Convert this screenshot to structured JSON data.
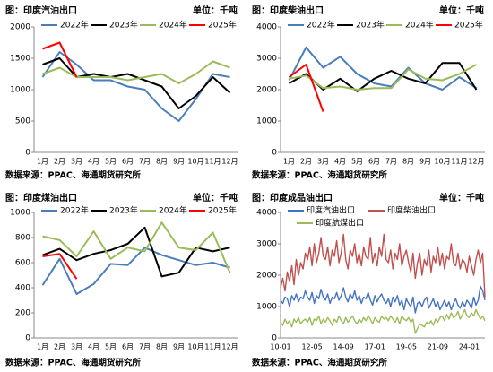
{
  "chart_data": [
    {
      "type": "line",
      "title": "图：印度汽油出口",
      "unit": "单位：千吨",
      "source": "数据来源：PPAC、海通期货研究所",
      "categories": [
        "1月",
        "2月",
        "3月",
        "4月",
        "5月",
        "6月",
        "7月",
        "8月",
        "9月",
        "10月",
        "11月",
        "12月"
      ],
      "ylim": [
        0,
        2000
      ],
      "yticks": [
        0,
        500,
        1000,
        1500,
        2000
      ],
      "legend_columns": 4,
      "series": [
        {
          "name": "2022年",
          "color": "#4a7ebb",
          "values": [
            1200,
            1600,
            1400,
            1150,
            1150,
            1050,
            1000,
            700,
            500,
            850,
            1250,
            1200
          ]
        },
        {
          "name": "2023年",
          "color": "#000000",
          "values": [
            1400,
            1500,
            1200,
            1250,
            1200,
            1250,
            1150,
            1050,
            700,
            900,
            1200,
            950
          ]
        },
        {
          "name": "2024年",
          "color": "#9bbb59",
          "values": [
            1250,
            1350,
            1200,
            1200,
            1200,
            1150,
            1200,
            1250,
            1100,
            1250,
            1450,
            1350
          ]
        },
        {
          "name": "2025年",
          "color": "#ff0000",
          "values": [
            1650,
            1750,
            1200,
            null,
            null,
            null,
            null,
            null,
            null,
            null,
            null,
            null
          ]
        }
      ]
    },
    {
      "type": "line",
      "title": "图：印度柴油出口",
      "unit": "单位：千吨",
      "source": "数据来源：PPAC、海通期货研究所",
      "categories": [
        "1月",
        "2月",
        "3月",
        "4月",
        "5月",
        "6月",
        "7月",
        "8月",
        "9月",
        "10月",
        "11月",
        "12月"
      ],
      "ylim": [
        0,
        4000
      ],
      "yticks": [
        0,
        1000,
        2000,
        3000,
        4000
      ],
      "legend_columns": 4,
      "series": [
        {
          "name": "2022年",
          "color": "#4a7ebb",
          "values": [
            2300,
            3350,
            2700,
            3050,
            2500,
            2200,
            2100,
            2700,
            2200,
            2000,
            2400,
            2050
          ]
        },
        {
          "name": "2023年",
          "color": "#000000",
          "values": [
            2200,
            2500,
            2000,
            2350,
            1950,
            2350,
            2600,
            2350,
            2200,
            2850,
            2850,
            2000
          ]
        },
        {
          "name": "2024年",
          "color": "#9bbb59",
          "values": [
            2350,
            2450,
            2050,
            2100,
            2000,
            2050,
            2050,
            2650,
            2350,
            2300,
            2500,
            2800
          ]
        },
        {
          "name": "2025年",
          "color": "#ff0000",
          "values": [
            2400,
            2800,
            1300,
            null,
            null,
            null,
            null,
            null,
            null,
            null,
            null,
            null
          ]
        }
      ]
    },
    {
      "type": "line",
      "title": "图：印度煤油出口",
      "unit": "单位：千吨",
      "source": "数据来源：PPAC、海通期货研究所",
      "categories": [
        "1月",
        "2月",
        "3月",
        "4月",
        "5月",
        "6月",
        "7月",
        "8月",
        "9月",
        "10月",
        "11月",
        "12月"
      ],
      "ylim": [
        0,
        1000
      ],
      "yticks": [
        0,
        200,
        400,
        600,
        800,
        1000
      ],
      "legend_columns": 4,
      "series": [
        {
          "name": "2022年",
          "color": "#4a7ebb",
          "values": [
            420,
            630,
            350,
            430,
            590,
            580,
            720,
            660,
            620,
            580,
            600,
            560
          ]
        },
        {
          "name": "2023年",
          "color": "#000000",
          "values": [
            660,
            710,
            620,
            670,
            700,
            750,
            880,
            490,
            520,
            720,
            690,
            720
          ]
        },
        {
          "name": "2024年",
          "color": "#9bbb59",
          "values": [
            810,
            780,
            650,
            850,
            630,
            720,
            690,
            920,
            720,
            700,
            840,
            520
          ]
        },
        {
          "name": "2025年",
          "color": "#ff0000",
          "values": [
            650,
            670,
            470,
            null,
            null,
            null,
            null,
            null,
            null,
            null,
            null,
            null
          ]
        }
      ]
    },
    {
      "type": "line",
      "title": "图：印度成品油出口",
      "unit": "单位：千吨",
      "source": "数据来源：PPAC、海通期货研究所",
      "categories": [
        "10-01",
        null,
        null,
        null,
        null,
        null,
        null,
        null,
        null,
        null,
        null,
        null,
        null,
        null,
        "12-05",
        null,
        null,
        null,
        null,
        null,
        null,
        null,
        null,
        null,
        null,
        null,
        null,
        null,
        "14-09",
        null,
        null,
        null,
        null,
        null,
        null,
        null,
        null,
        null,
        null,
        null,
        null,
        null,
        "17-01",
        null,
        null,
        null,
        null,
        null,
        null,
        null,
        null,
        null,
        null,
        null,
        null,
        null,
        "19-05",
        null,
        null,
        null,
        null,
        null,
        null,
        null,
        null,
        null,
        null,
        null,
        null,
        null,
        "21-09",
        null,
        null,
        null,
        null,
        null,
        null,
        null,
        null,
        null,
        null,
        null,
        null,
        null,
        "24-01",
        null,
        null,
        null,
        null,
        null,
        null,
        null
      ],
      "ylim": [
        0,
        4000
      ],
      "yticks": [
        0,
        1000,
        2000,
        3000,
        4000
      ],
      "legend_columns": 2,
      "series": [
        {
          "name": "印度汽油出口",
          "color": "#4472c4",
          "values": [
            1200,
            1100,
            1300,
            1250,
            1000,
            1350,
            1200,
            1400,
            1150,
            1300,
            1250,
            1500,
            1300,
            1200,
            1450,
            1100,
            1350,
            1250,
            1550,
            1300,
            1200,
            1400,
            1100,
            1300,
            1250,
            1450,
            1200,
            1350,
            1600,
            1300,
            1150,
            1400,
            1250,
            1500,
            1200,
            1350,
            1100,
            1300,
            1250,
            1450,
            1200,
            1050,
            1350,
            1150,
            1300,
            1400,
            1200,
            1100,
            1250,
            1000,
            1300,
            1150,
            1350,
            1050,
            1200,
            900,
            1250,
            1100,
            1000,
            1300,
            800,
            1100,
            1150,
            1000,
            1200,
            1300,
            950,
            1100,
            1250,
            1000,
            1150,
            900,
            1050,
            1200,
            1000,
            1150,
            900,
            1100,
            1250,
            1050,
            950,
            1150,
            1000,
            1200,
            1100,
            950,
            1300,
            1050,
            1200,
            1650,
            1500,
            1200
          ]
        },
        {
          "name": "印度柴油出口",
          "color": "#c0504d",
          "values": [
            1600,
            1900,
            1500,
            2100,
            1800,
            2300,
            1700,
            2500,
            2000,
            2400,
            2200,
            2700,
            2500,
            2900,
            2300,
            3000,
            2400,
            2700,
            3200,
            2600,
            2500,
            2900,
            2300,
            2800,
            2600,
            3100,
            2400,
            2700,
            3300,
            2500,
            2200,
            2800,
            2600,
            3000,
            2400,
            2700,
            2300,
            2900,
            2600,
            2500,
            3200,
            2400,
            2700,
            2300,
            2900,
            2600,
            3300,
            2500,
            2400,
            2800,
            2200,
            2700,
            2500,
            3000,
            2300,
            2600,
            2800,
            2400,
            2100,
            2700,
            1900,
            2400,
            2700,
            2000,
            2500,
            2300,
            2800,
            2100,
            2600,
            2400,
            2900,
            2300,
            2700,
            2200,
            2600,
            2500,
            3000,
            2400,
            2300,
            2700,
            2200,
            2500,
            2400,
            2100,
            2600,
            2300,
            2000,
            2500,
            2800,
            2400,
            2700,
            1300
          ]
        },
        {
          "name": "印度航煤出口",
          "color": "#9bbb59",
          "values": [
            500,
            400,
            600,
            450,
            550,
            350,
            600,
            500,
            650,
            450,
            550,
            600,
            500,
            650,
            400,
            600,
            550,
            700,
            450,
            600,
            500,
            650,
            550,
            400,
            600,
            500,
            700,
            550,
            450,
            650,
            500,
            600,
            700,
            550,
            450,
            600,
            500,
            650,
            550,
            700,
            600,
            450,
            650,
            550,
            500,
            700,
            600,
            650,
            550,
            700,
            600,
            500,
            650,
            450,
            700,
            600,
            550,
            650,
            500,
            600,
            150,
            300,
            450,
            400,
            350,
            500,
            450,
            550,
            400,
            600,
            500,
            650,
            700,
            550,
            750,
            600,
            800,
            650,
            700,
            850,
            600,
            750,
            900,
            700,
            650,
            800,
            700,
            900,
            750,
            600,
            700,
            550
          ]
        }
      ]
    }
  ]
}
